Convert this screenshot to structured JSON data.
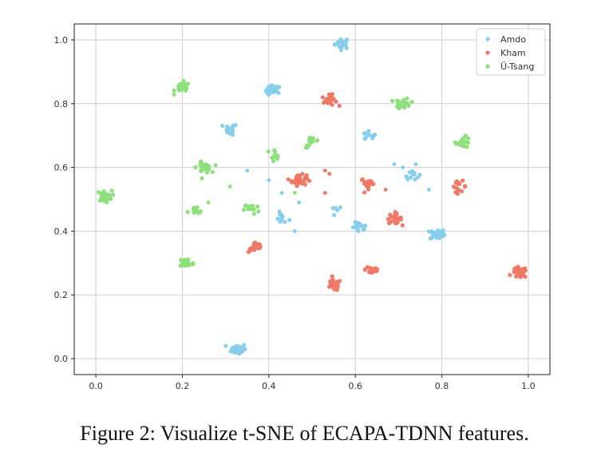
{
  "caption": "Figure 2: Visualize t-SNE of ECAPA-TDNN features.",
  "chart_data": {
    "type": "scatter",
    "title": "",
    "xlabel": "",
    "ylabel": "",
    "xlim": [
      -0.05,
      1.05
    ],
    "ylim": [
      -0.05,
      1.05
    ],
    "xticks": [
      0.0,
      0.2,
      0.4,
      0.6,
      0.8,
      1.0
    ],
    "yticks": [
      0.0,
      0.2,
      0.4,
      0.6,
      0.8,
      1.0
    ],
    "xtick_labels": [
      "0.0",
      "0.2",
      "0.4",
      "0.6",
      "0.8",
      "1.0"
    ],
    "ytick_labels": [
      "0.0",
      "0.2",
      "0.4",
      "0.6",
      "0.8",
      "1.0"
    ],
    "grid": true,
    "legend_position": "top-right",
    "series": [
      {
        "name": "Amdo",
        "color": "#87ceeb",
        "clusters": [
          {
            "x": 0.57,
            "y": 0.99,
            "n": 22
          },
          {
            "x": 0.41,
            "y": 0.84,
            "n": 26
          },
          {
            "x": 0.31,
            "y": 0.72,
            "n": 14
          },
          {
            "x": 0.63,
            "y": 0.7,
            "n": 10
          },
          {
            "x": 0.43,
            "y": 0.44,
            "n": 12
          },
          {
            "x": 0.61,
            "y": 0.41,
            "n": 16
          },
          {
            "x": 0.79,
            "y": 0.39,
            "n": 28
          },
          {
            "x": 0.33,
            "y": 0.03,
            "n": 48
          },
          {
            "x": 0.73,
            "y": 0.58,
            "n": 12
          },
          {
            "x": 0.56,
            "y": 0.47,
            "n": 5
          }
        ],
        "points": [
          {
            "x": 0.35,
            "y": 0.59
          },
          {
            "x": 0.4,
            "y": 0.56
          },
          {
            "x": 0.43,
            "y": 0.52
          },
          {
            "x": 0.47,
            "y": 0.49
          },
          {
            "x": 0.46,
            "y": 0.4
          },
          {
            "x": 0.77,
            "y": 0.53
          },
          {
            "x": 0.69,
            "y": 0.61
          },
          {
            "x": 0.71,
            "y": 0.6
          },
          {
            "x": 0.74,
            "y": 0.61
          }
        ]
      },
      {
        "name": "Kham",
        "color": "#f07866",
        "clusters": [
          {
            "x": 0.54,
            "y": 0.81,
            "n": 24
          },
          {
            "x": 0.47,
            "y": 0.56,
            "n": 45
          },
          {
            "x": 0.63,
            "y": 0.55,
            "n": 22
          },
          {
            "x": 0.84,
            "y": 0.54,
            "n": 14
          },
          {
            "x": 0.69,
            "y": 0.44,
            "n": 26
          },
          {
            "x": 0.37,
            "y": 0.35,
            "n": 22
          },
          {
            "x": 0.64,
            "y": 0.28,
            "n": 18
          },
          {
            "x": 0.55,
            "y": 0.23,
            "n": 26
          },
          {
            "x": 0.98,
            "y": 0.27,
            "n": 34
          }
        ],
        "points": [
          {
            "x": 0.54,
            "y": 0.58
          },
          {
            "x": 0.53,
            "y": 0.59
          },
          {
            "x": 0.53,
            "y": 0.52
          },
          {
            "x": 0.67,
            "y": 0.53
          }
        ]
      },
      {
        "name": "Ü-Tsang",
        "color": "#8ee07a",
        "clusters": [
          {
            "x": 0.2,
            "y": 0.85,
            "n": 24
          },
          {
            "x": 0.71,
            "y": 0.8,
            "n": 26
          },
          {
            "x": 0.85,
            "y": 0.68,
            "n": 22
          },
          {
            "x": 0.5,
            "y": 0.68,
            "n": 14
          },
          {
            "x": 0.41,
            "y": 0.64,
            "n": 12
          },
          {
            "x": 0.25,
            "y": 0.6,
            "n": 30
          },
          {
            "x": 0.02,
            "y": 0.51,
            "n": 30
          },
          {
            "x": 0.23,
            "y": 0.46,
            "n": 14
          },
          {
            "x": 0.36,
            "y": 0.47,
            "n": 14
          },
          {
            "x": 0.21,
            "y": 0.3,
            "n": 28
          }
        ],
        "points": [
          {
            "x": 0.26,
            "y": 0.49
          },
          {
            "x": 0.31,
            "y": 0.54
          },
          {
            "x": 0.46,
            "y": 0.52
          }
        ]
      }
    ]
  }
}
